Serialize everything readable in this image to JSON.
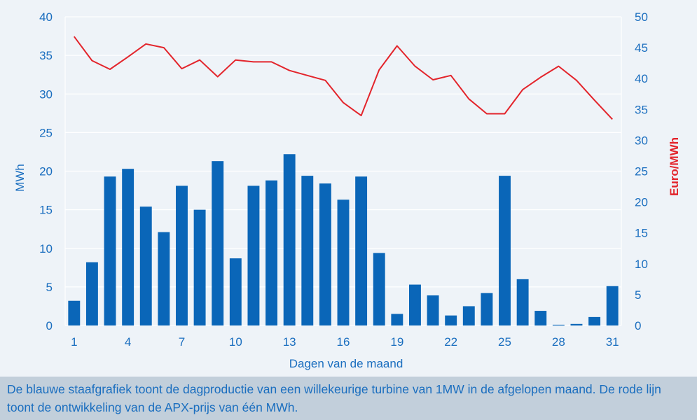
{
  "caption": "De blauwe staafgrafiek toont de dagproductie van een willekeurige turbine van 1MW in de afgelopen maand. De rode lijn toont de ontwikkeling van de APX-prijs van één MWh.",
  "colors": {
    "background": "#eef3f8",
    "bar": "#0a66b8",
    "line": "#e3242b",
    "axis_text": "#1a6ebf",
    "grid": "#ffffff",
    "caption_bg": "#c2cfdb"
  },
  "chart_data": {
    "type": "bar",
    "xlabel": "Dagen van de maand",
    "ylabel": "MWh",
    "y2label": "Euro/MWh",
    "ylim": [
      0,
      40
    ],
    "y2lim": [
      0,
      50
    ],
    "yticks": [
      0,
      5,
      10,
      15,
      20,
      25,
      30,
      35,
      40
    ],
    "y2ticks": [
      0,
      5,
      10,
      15,
      20,
      25,
      30,
      35,
      40,
      45,
      50
    ],
    "x": [
      1,
      2,
      3,
      4,
      5,
      6,
      7,
      8,
      9,
      10,
      11,
      12,
      13,
      14,
      15,
      16,
      17,
      18,
      19,
      20,
      21,
      22,
      23,
      24,
      25,
      26,
      27,
      28,
      29,
      30,
      31
    ],
    "xtick_labels": [
      "1",
      "4",
      "7",
      "10",
      "13",
      "16",
      "19",
      "22",
      "25",
      "28",
      "31"
    ],
    "grid": true,
    "series": [
      {
        "type": "bar",
        "axis": "left",
        "values": [
          3.2,
          8.2,
          19.3,
          20.3,
          15.4,
          12.1,
          18.1,
          15.0,
          21.3,
          8.7,
          18.1,
          18.8,
          22.2,
          19.4,
          18.4,
          16.3,
          19.3,
          9.4,
          1.5,
          5.3,
          3.9,
          1.3,
          2.5,
          4.2,
          19.4,
          6.0,
          1.9,
          0.1,
          0.2,
          1.1,
          5.1
        ]
      },
      {
        "type": "line",
        "axis": "right",
        "values": [
          46.8,
          42.9,
          41.5,
          43.5,
          45.6,
          45.0,
          41.6,
          43.0,
          40.3,
          43.0,
          42.7,
          42.7,
          41.3,
          40.5,
          39.7,
          36.1,
          34.0,
          41.4,
          45.3,
          42.0,
          39.8,
          40.5,
          36.7,
          34.3,
          34.3,
          38.2,
          40.2,
          42.0,
          39.7,
          36.5,
          33.4
        ]
      }
    ]
  }
}
